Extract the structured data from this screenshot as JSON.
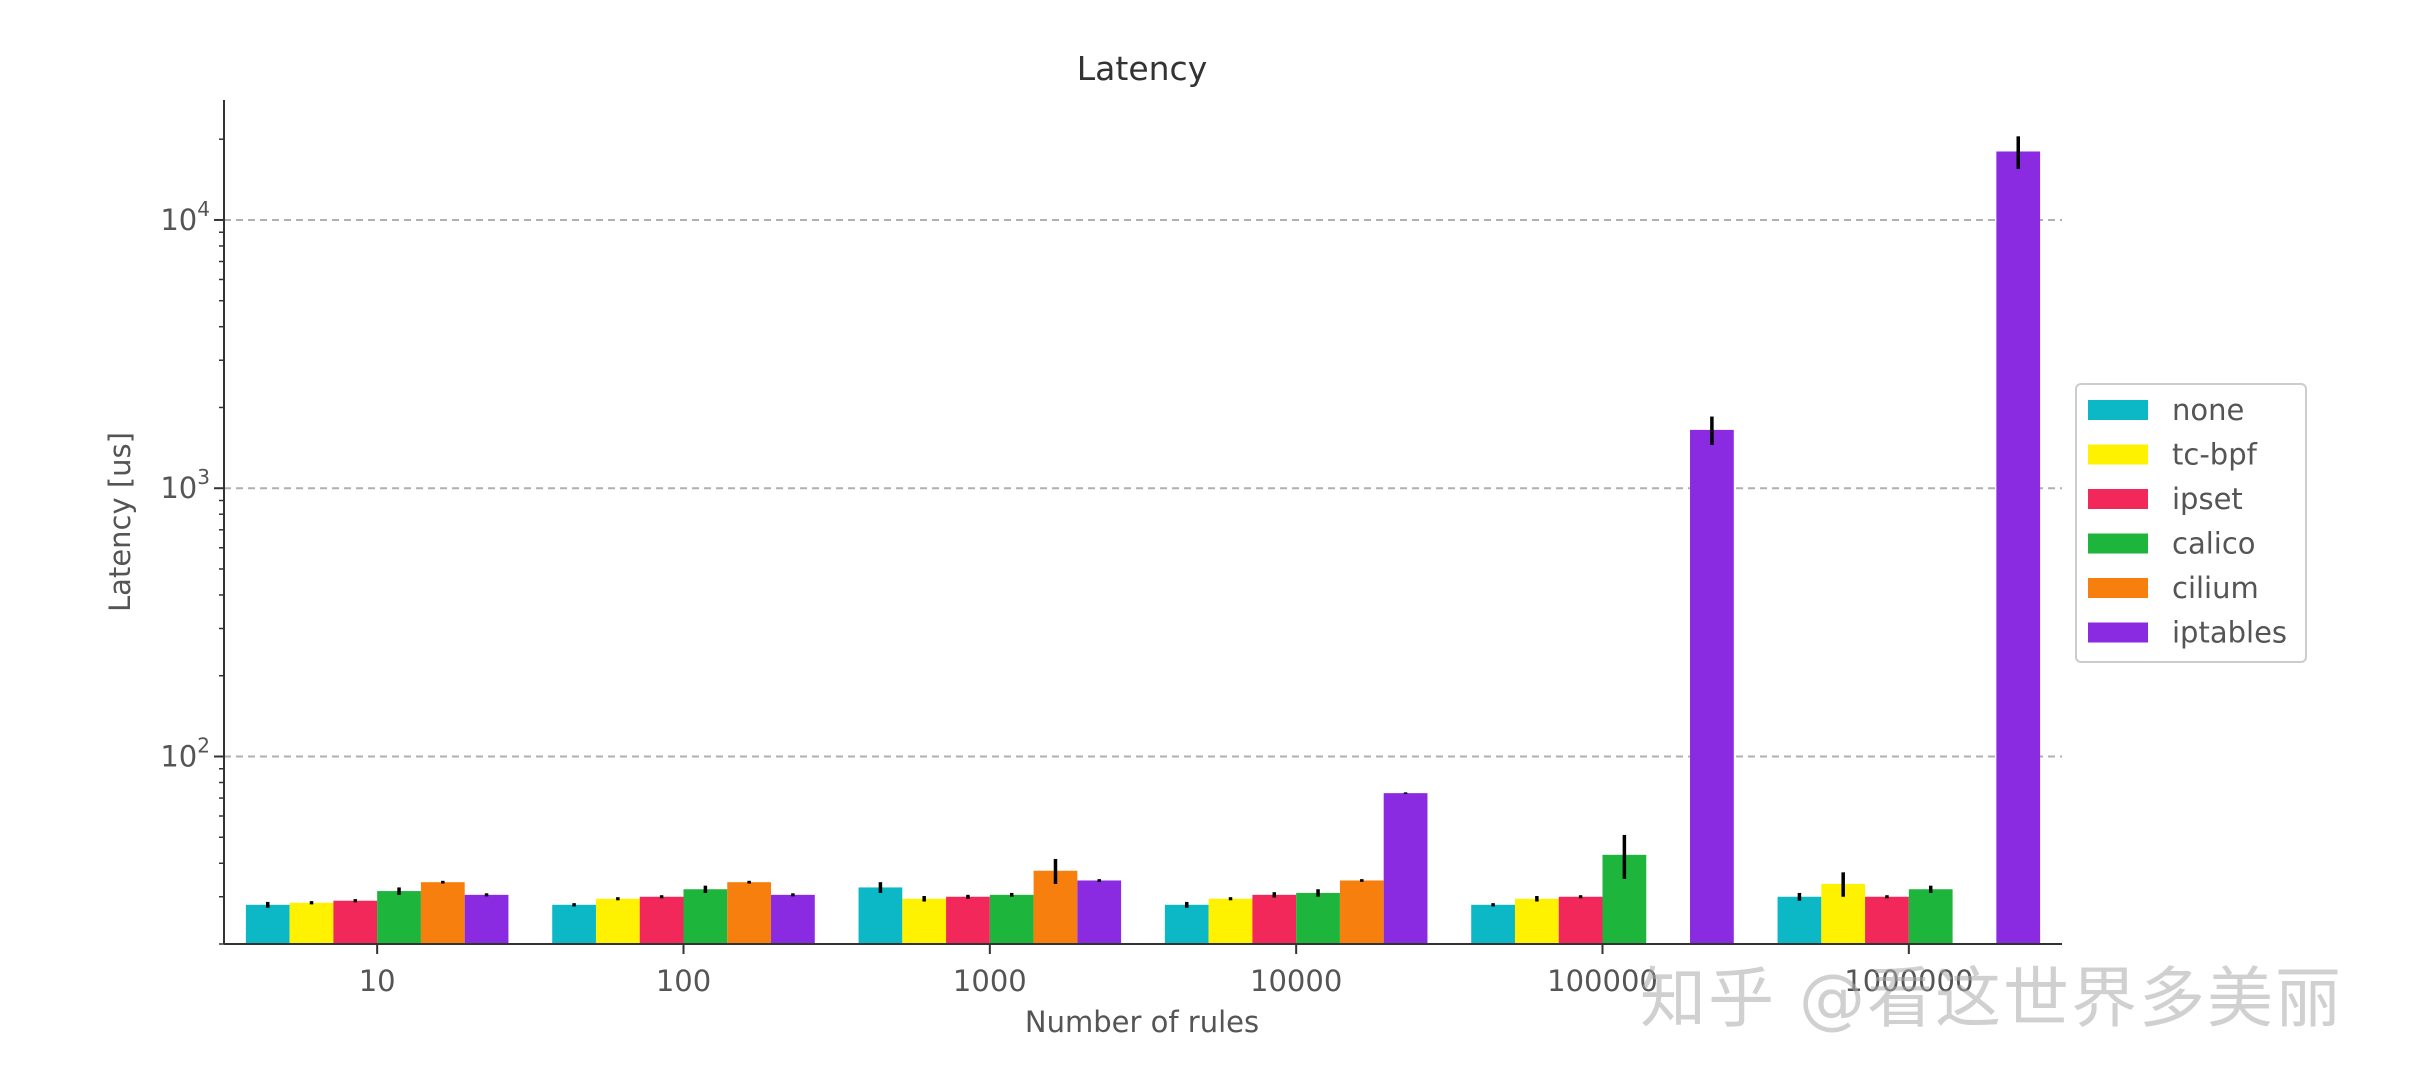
{
  "chart_data": {
    "type": "bar",
    "title": "Latency",
    "xlabel": "Number of rules",
    "ylabel": "Latency [us]",
    "yscale": "log",
    "ylim": [
      20,
      28000
    ],
    "yticks": [
      {
        "value": 100,
        "base": "10",
        "exp": "2"
      },
      {
        "value": 1000,
        "base": "10",
        "exp": "3"
      },
      {
        "value": 10000,
        "base": "10",
        "exp": "4"
      }
    ],
    "grid": "horizontal-dashed",
    "legend_position": "right",
    "categories": [
      "10",
      "100",
      "1000",
      "10000",
      "100000",
      "1000000"
    ],
    "series": [
      {
        "name": "none",
        "color": "#0cb8c6",
        "values": [
          28,
          28,
          32.5,
          28,
          28,
          30
        ],
        "errors": [
          0.7,
          0.4,
          1.5,
          0.7,
          0.4,
          1.0
        ]
      },
      {
        "name": "tc-bpf",
        "color": "#fff200",
        "values": [
          28.5,
          29.5,
          29.5,
          29.5,
          29.5,
          33.5
        ],
        "errors": [
          0.4,
          0.4,
          0.7,
          0.4,
          0.7,
          3.5
        ]
      },
      {
        "name": "ipset",
        "color": "#f2285a",
        "values": [
          29,
          30,
          30,
          30.5,
          30,
          30
        ],
        "errors": [
          0.4,
          0.4,
          0.5,
          0.7,
          0.4,
          0.4
        ]
      },
      {
        "name": "calico",
        "color": "#1db53c",
        "values": [
          31.5,
          32,
          30.5,
          31,
          43,
          32
        ],
        "errors": [
          1.0,
          1.0,
          0.5,
          1.0,
          8,
          1.0
        ]
      },
      {
        "name": "cilium",
        "color": "#f77f0e",
        "values": [
          34,
          34,
          37.5,
          34.5,
          "",
          ""
        ],
        "errors": [
          0.4,
          0.4,
          4,
          0.4,
          "",
          ""
        ]
      },
      {
        "name": "iptables",
        "color": "#8a2be2",
        "values": [
          30.5,
          30.5,
          34.5,
          73,
          1650,
          18000
        ],
        "errors": [
          0.4,
          0.4,
          0.4,
          0.5,
          200,
          2500
        ]
      }
    ]
  },
  "watermark": "知乎 @看这世界多美丽"
}
